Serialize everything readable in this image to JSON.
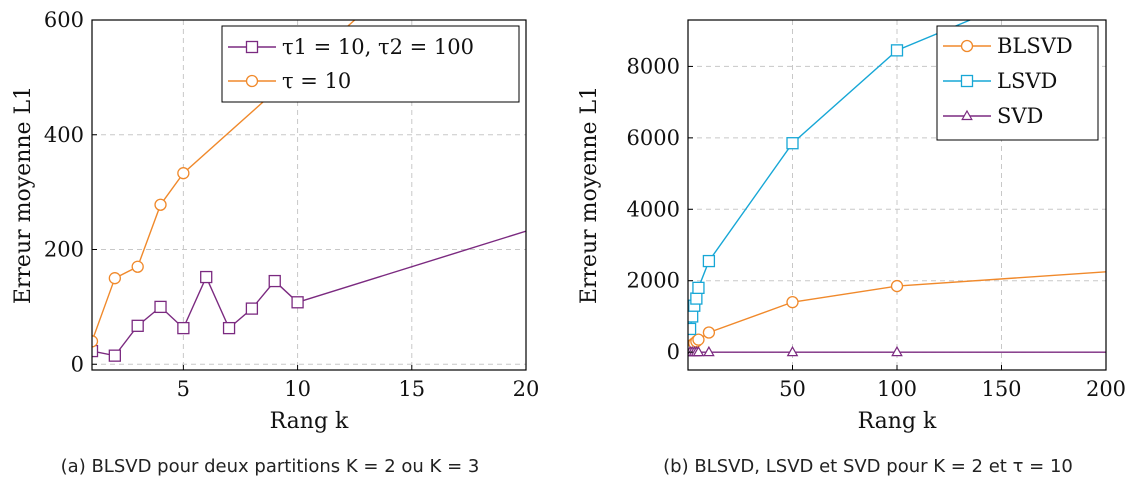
{
  "chart_data": [
    {
      "type": "line",
      "xlabel": "Rang k",
      "ylabel": "Erreur moyenne L1",
      "caption": "(a) BLSVD pour deux partitions K = 2 ou K = 3",
      "xlim": [
        1,
        20
      ],
      "ylim": [
        -10,
        600
      ],
      "xticks": [
        5,
        10,
        15,
        20
      ],
      "yticks": [
        0,
        200,
        400,
        600
      ],
      "grid": true,
      "legend_position": "top-right",
      "series": [
        {
          "name": "τ1 = 10, τ2 = 100",
          "color": "#7b2a80",
          "marker": "square",
          "x": [
            1,
            2,
            3,
            4,
            5,
            6,
            7,
            8,
            9,
            10,
            20
          ],
          "y": [
            23,
            15,
            67,
            100,
            63,
            152,
            63,
            97,
            145,
            108,
            232
          ],
          "markers_until": 10
        },
        {
          "name": "τ = 10",
          "color": "#f0892b",
          "marker": "circle",
          "x": [
            1,
            2,
            3,
            4,
            5,
            12.5
          ],
          "y": [
            40,
            150,
            170,
            278,
            333,
            600
          ],
          "markers_until": 5
        }
      ]
    },
    {
      "type": "line",
      "xlabel": "Rang k",
      "ylabel": "Erreur moyenne L1",
      "caption": "(b) BLSVD, LSVD et SVD pour K = 2 et τ = 10",
      "xlim": [
        0,
        200
      ],
      "ylim": [
        -500,
        9300
      ],
      "xticks": [
        50,
        100,
        150,
        200
      ],
      "yticks": [
        0,
        2000,
        4000,
        6000,
        8000
      ],
      "grid": true,
      "legend_position": "top-right",
      "series": [
        {
          "name": "BLSVD",
          "color": "#f0892b",
          "marker": "circle",
          "x": [
            1,
            2,
            3,
            4,
            5,
            10,
            50,
            100,
            200
          ],
          "y": [
            150,
            200,
            250,
            300,
            350,
            550,
            1400,
            1850,
            2250
          ],
          "markers_until": 100
        },
        {
          "name": "LSVD",
          "color": "#17a7d6",
          "marker": "square",
          "x": [
            1,
            2,
            3,
            4,
            5,
            10,
            50,
            100,
            135
          ],
          "y": [
            650,
            1000,
            1300,
            1500,
            1800,
            2550,
            5850,
            8450,
            9300
          ],
          "markers_until": 100
        },
        {
          "name": "SVD",
          "color": "#7b2a80",
          "marker": "triangle",
          "x": [
            1,
            2,
            3,
            4,
            5,
            10,
            50,
            100,
            200
          ],
          "y": [
            0,
            0,
            0,
            0,
            0,
            0,
            0,
            0,
            0
          ],
          "markers_until": 100
        }
      ]
    }
  ]
}
